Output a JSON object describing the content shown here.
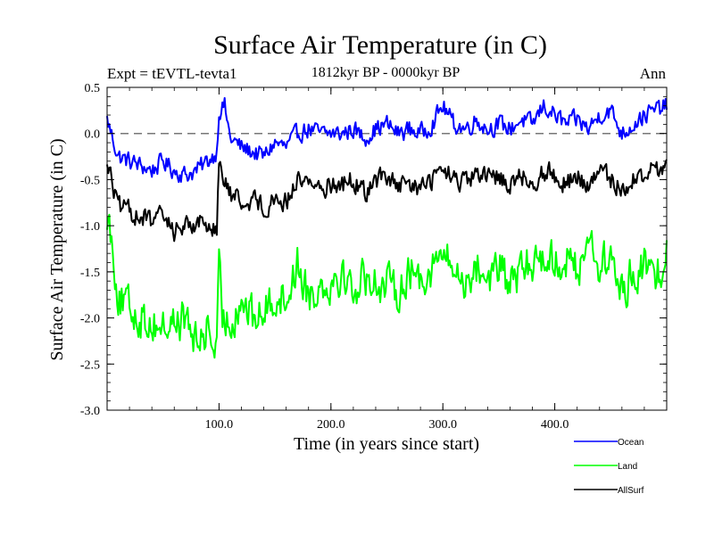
{
  "chart_data": {
    "type": "line",
    "title": "Surface Air Temperature (in C)",
    "subtitle": "1812kyr BP - 0000kyr BP",
    "experiment": "Expt = tEVTL-tevta1",
    "season": "Ann",
    "xlabel": "Time (in years since start)",
    "ylabel": "Surface Air Temperature (in C)",
    "xlim": [
      0,
      500
    ],
    "ylim": [
      -3.0,
      0.5
    ],
    "xticks": [
      100,
      200,
      300,
      400
    ],
    "xtick_labels": [
      "100.0",
      "200.0",
      "300.0",
      "400.0"
    ],
    "yticks": [
      0.5,
      0.0,
      -0.5,
      -1.0,
      -1.5,
      -2.0,
      -2.5,
      -3.0
    ],
    "ytick_labels": [
      "0.5",
      "0.0",
      "-0.5",
      "-1.0",
      "-1.5",
      "-2.0",
      "-2.5",
      "-3.0"
    ],
    "reference_line": 0.0,
    "series": [
      {
        "name": "Ocean",
        "color": "#0000ff",
        "x": [
          0,
          10,
          20,
          30,
          40,
          50,
          60,
          70,
          80,
          90,
          98,
          100,
          105,
          110,
          120,
          130,
          140,
          150,
          160,
          170,
          180,
          190,
          200,
          210,
          220,
          230,
          240,
          250,
          260,
          270,
          280,
          290,
          300,
          310,
          320,
          330,
          340,
          350,
          360,
          370,
          380,
          390,
          400,
          410,
          420,
          430,
          440,
          450,
          460,
          470,
          480,
          490,
          500
        ],
        "values": [
          0.15,
          -0.25,
          -0.3,
          -0.35,
          -0.4,
          -0.3,
          -0.4,
          -0.45,
          -0.4,
          -0.3,
          -0.2,
          0.25,
          0.3,
          -0.05,
          -0.15,
          -0.2,
          -0.25,
          -0.1,
          -0.15,
          0.0,
          0.05,
          0.0,
          0.0,
          0.0,
          0.05,
          -0.05,
          0.05,
          0.1,
          0.0,
          0.05,
          0.0,
          0.1,
          0.3,
          0.1,
          0.05,
          0.15,
          0.05,
          0.1,
          0.05,
          0.15,
          0.1,
          0.3,
          0.2,
          0.1,
          0.15,
          0.05,
          0.2,
          0.25,
          0.0,
          0.1,
          0.2,
          0.25,
          0.3
        ]
      },
      {
        "name": "Land",
        "color": "#00ff00",
        "x": [
          0,
          5,
          10,
          20,
          30,
          40,
          50,
          60,
          70,
          80,
          90,
          98,
          100,
          103,
          110,
          120,
          130,
          140,
          150,
          160,
          170,
          180,
          190,
          200,
          210,
          220,
          230,
          240,
          250,
          260,
          270,
          280,
          290,
          300,
          310,
          320,
          330,
          340,
          350,
          360,
          370,
          380,
          390,
          400,
          410,
          420,
          430,
          440,
          450,
          460,
          470,
          480,
          490,
          500
        ],
        "values": [
          -0.85,
          -1.2,
          -1.8,
          -1.9,
          -2.0,
          -2.05,
          -2.1,
          -2.05,
          -2.0,
          -2.3,
          -2.1,
          -2.4,
          -1.5,
          -2.0,
          -2.05,
          -1.8,
          -2.0,
          -1.95,
          -1.75,
          -1.8,
          -1.4,
          -1.75,
          -1.65,
          -1.6,
          -1.5,
          -1.7,
          -1.55,
          -1.6,
          -1.65,
          -1.7,
          -1.5,
          -1.55,
          -1.45,
          -1.3,
          -1.5,
          -1.6,
          -1.45,
          -1.55,
          -1.45,
          -1.65,
          -1.5,
          -1.4,
          -1.3,
          -1.4,
          -1.35,
          -1.5,
          -1.1,
          -1.45,
          -1.35,
          -1.75,
          -1.5,
          -1.45,
          -1.55,
          -1.3
        ]
      },
      {
        "name": "AllSurf",
        "color": "#000000",
        "x": [
          0,
          10,
          20,
          30,
          40,
          50,
          60,
          70,
          80,
          90,
          98,
          100,
          105,
          110,
          120,
          130,
          140,
          150,
          160,
          170,
          180,
          190,
          200,
          210,
          220,
          230,
          240,
          250,
          260,
          270,
          280,
          290,
          300,
          310,
          320,
          330,
          340,
          350,
          360,
          370,
          380,
          390,
          400,
          410,
          420,
          430,
          440,
          450,
          460,
          470,
          480,
          490,
          500
        ],
        "values": [
          -0.3,
          -0.8,
          -0.85,
          -0.9,
          -0.95,
          -0.9,
          -1.05,
          -1.0,
          -0.95,
          -1.0,
          -1.0,
          -0.35,
          -0.55,
          -0.65,
          -0.75,
          -0.7,
          -0.8,
          -0.7,
          -0.75,
          -0.5,
          -0.5,
          -0.6,
          -0.55,
          -0.55,
          -0.5,
          -0.65,
          -0.5,
          -0.45,
          -0.6,
          -0.55,
          -0.6,
          -0.5,
          -0.4,
          -0.5,
          -0.55,
          -0.45,
          -0.5,
          -0.45,
          -0.55,
          -0.45,
          -0.55,
          -0.4,
          -0.45,
          -0.55,
          -0.45,
          -0.6,
          -0.4,
          -0.5,
          -0.6,
          -0.5,
          -0.45,
          -0.4,
          -0.35
        ]
      }
    ]
  }
}
